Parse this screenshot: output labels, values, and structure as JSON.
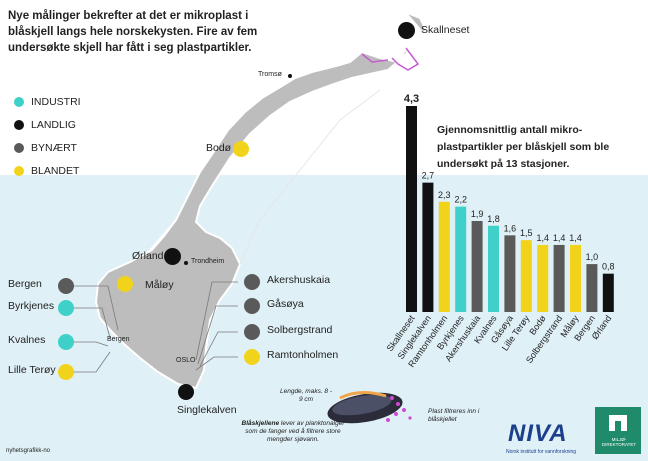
{
  "headline": "Nye målinger bekrefter at det er mikroplast i blåskjell langs hele norskekysten. Fire av fem undersøkte skjell har fått i seg plastpartikler.",
  "colors": {
    "industri": "#3fd1c9",
    "landlig": "#111111",
    "bynaert": "#5a5a5a",
    "blandet": "#f2d31b",
    "sea": "#dff0f6",
    "land": "#bdbdbd"
  },
  "legend": [
    {
      "label": "INDUSTRI",
      "color": "#3fd1c9"
    },
    {
      "label": "LANDLIG",
      "color": "#111111"
    },
    {
      "label": "BYNÆRT",
      "color": "#5a5a5a"
    },
    {
      "label": "BLANDET",
      "color": "#f2d31b"
    }
  ],
  "map_labels": {
    "skallneset": "Skallneset",
    "tromso": "Tromsø",
    "bodo": "Bodø",
    "orland": "Ørland",
    "trondheim": "Trondheim",
    "maloy": "Måløy",
    "bergen_city": "Bergen",
    "oslo": "OSLO",
    "singlekalven": "Singlekalven"
  },
  "station_labels_left": [
    {
      "name": "Bergen",
      "color": "#5a5a5a"
    },
    {
      "name": "Byrkjenes",
      "color": "#3fd1c9"
    },
    {
      "name": "Kvalnes",
      "color": "#3fd1c9"
    },
    {
      "name": "Lille Terøy",
      "color": "#f2d31b"
    }
  ],
  "station_labels_right": [
    {
      "name": "Akershuskaia",
      "color": "#5a5a5a"
    },
    {
      "name": "Gåsøya",
      "color": "#5a5a5a"
    },
    {
      "name": "Solbergstrand",
      "color": "#5a5a5a"
    },
    {
      "name": "Ramtonholmen",
      "color": "#f2d31b"
    }
  ],
  "mussel": {
    "size_note": "Lengde, maks. 8 - 9 cm",
    "filter_note_bold": "Blåskjellene",
    "filter_note": "lever av planktonalger som de fanger ved å filtrere store mengder sjøvann.",
    "plastic_note": "Plast filtreres inn i blåskjellet"
  },
  "credit": "nyhetsgrafikk-no",
  "logos": {
    "niva": "NIVA",
    "niva_sub": "Norsk institutt for vannforskning",
    "mdir": "MILJØ-DIREKTORATET"
  },
  "chart_data": {
    "type": "bar",
    "title": "Gjennomsnittlig antall mikro-plastpartikler per blåskjell som ble undersøkt på 13 stasjoner.",
    "categories": [
      "Skallneset",
      "Singlekalven",
      "Ramtonholmen",
      "Byrkjenes",
      "Akershuskaia",
      "Kvalnes",
      "Gåsøya",
      "Lille Terøy",
      "Bodø",
      "Solbergstrand",
      "Måløy",
      "Bergen",
      "Ørland"
    ],
    "values": [
      4.3,
      2.7,
      2.3,
      2.2,
      1.9,
      1.8,
      1.6,
      1.5,
      1.4,
      1.4,
      1.4,
      1.0,
      0.8
    ],
    "value_labels": [
      "4,3",
      "2,7",
      "2,3",
      "2,2",
      "1,9",
      "1,8",
      "1,6",
      "1,5",
      "1,4",
      "1,4",
      "1,4",
      "1,0",
      "0,8"
    ],
    "bar_colors": [
      "#111111",
      "#111111",
      "#f2d31b",
      "#3fd1c9",
      "#5a5a5a",
      "#3fd1c9",
      "#5a5a5a",
      "#f2d31b",
      "#f2d31b",
      "#5a5a5a",
      "#f2d31b",
      "#5a5a5a",
      "#111111"
    ],
    "ylim": [
      0,
      4.3
    ],
    "grid": false,
    "legend": "left"
  }
}
